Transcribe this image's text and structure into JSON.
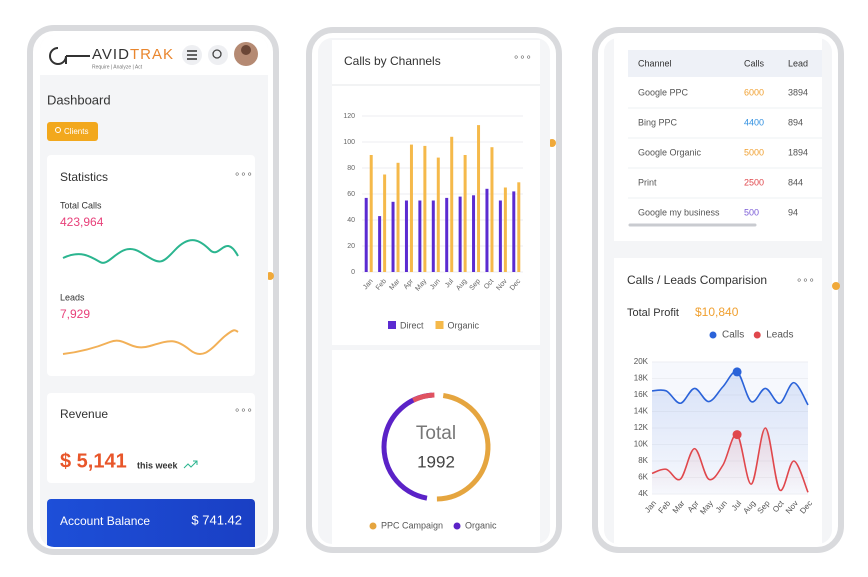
{
  "phone1": {
    "logo_left": "AVID",
    "logo_right": "TRAK",
    "tagline": "Require  |  Analyze  |  Act",
    "page_title": "Dashboard",
    "button": "Clients",
    "statistics": {
      "title": "Statistics",
      "total_calls_label": "Total Calls",
      "total_calls": "423,964",
      "leads_label": "Leads",
      "leads": "7,929"
    },
    "revenue": {
      "title": "Revenue",
      "amount": "$ 5,141",
      "period": "this week"
    },
    "account_balance": {
      "label": "Account Balance",
      "amount": "$ 741.42"
    }
  },
  "phone2": {
    "calls_by_channels": {
      "type": "bar",
      "title": "Calls by Channels",
      "categories": [
        "Jan",
        "Feb",
        "Mar",
        "Apr",
        "May",
        "Jun",
        "Jul",
        "Aug",
        "Sep",
        "Oct",
        "Nov",
        "Dec"
      ],
      "series": [
        {
          "name": "Direct",
          "color": "#5b2bd1",
          "values": [
            57,
            43,
            54,
            55,
            55,
            55,
            57,
            58,
            59,
            64,
            55,
            62
          ]
        },
        {
          "name": "Organic",
          "color": "#f5b94a",
          "values": [
            90,
            75,
            84,
            98,
            97,
            88,
            104,
            90,
            113,
            96,
            65,
            69
          ]
        }
      ],
      "ylim": [
        0,
        120
      ],
      "yticks": [
        0,
        20,
        40,
        60,
        80,
        100,
        120
      ],
      "grid": true
    },
    "donut": {
      "center_label": "Total",
      "center_value": 1992,
      "legend": [
        {
          "name": "PPC Campaign",
          "color": "#e5a53f"
        },
        {
          "name": "Organic",
          "color": "#5b22c7"
        }
      ]
    }
  },
  "phone3": {
    "table": {
      "header": [
        "Channel",
        "Calls",
        "Lead"
      ],
      "rows": [
        [
          "Google PPC",
          6000,
          3894
        ],
        [
          "Bing PPC",
          4400,
          894
        ],
        [
          "Google Organic",
          5000,
          1894
        ],
        [
          "Print",
          2500,
          844
        ],
        [
          "Google my business",
          500,
          94
        ]
      ]
    },
    "comparison": {
      "type": "line",
      "title": "Calls / Leads Comparision",
      "profit_label": "Total Profit",
      "profit_value": "$10,840",
      "categories": [
        "Jan",
        "Feb",
        "Mar",
        "Apr",
        "May",
        "Jun",
        "Jul",
        "Aug",
        "Sep",
        "Oct",
        "Nov",
        "Dec"
      ],
      "series": [
        {
          "name": "Calls",
          "color": "#2b63d9",
          "values": [
            16500,
            16500,
            15000,
            16800,
            15200,
            17000,
            18800,
            15200,
            16800,
            15000,
            17500,
            14800
          ]
        },
        {
          "name": "Leads",
          "color": "#e0474c",
          "values": [
            6500,
            7000,
            5800,
            9500,
            5800,
            7500,
            11200,
            5200,
            12000,
            4500,
            8000,
            4200
          ]
        }
      ],
      "ylim": [
        4000,
        20000
      ],
      "yticks": [
        {
          "value": 4000,
          "label": "4K"
        },
        {
          "value": 6000,
          "label": "6K"
        },
        {
          "value": 8000,
          "label": "8K"
        },
        {
          "value": 10000,
          "label": "10K"
        },
        {
          "value": 12000,
          "label": "12K"
        },
        {
          "value": 14000,
          "label": "14K"
        },
        {
          "value": 16000,
          "label": "16K"
        },
        {
          "value": 18000,
          "label": "18K"
        },
        {
          "value": 20000,
          "label": "20K"
        }
      ]
    }
  }
}
